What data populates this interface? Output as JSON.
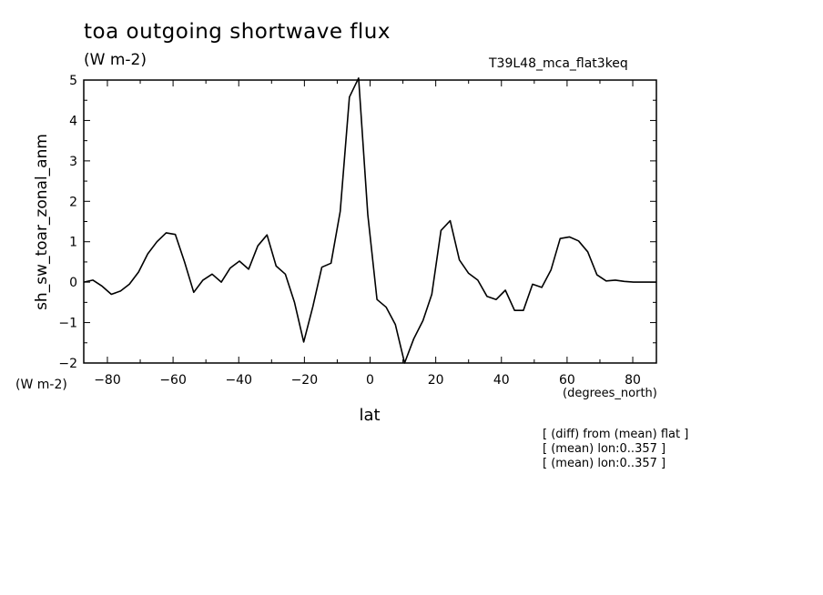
{
  "chart_data": {
    "type": "line",
    "title": "toa outgoing shortwave flux",
    "units": "(W m-2)",
    "run_id": "T39L48_mca_flat3keq",
    "ylabel": "sh_sw_toar_zonal_anm",
    "y_units_label": "(W m-2)",
    "xlabel": "lat",
    "x_units_label": "(degrees_north)",
    "xlim": [
      -87.2,
      87.2
    ],
    "ylim": [
      -2,
      5
    ],
    "xticks": [
      -80,
      -60,
      -40,
      -20,
      0,
      20,
      40,
      60,
      80
    ],
    "xtick_labels": [
      "−80",
      "−60",
      "−40",
      "−20",
      "0",
      "20",
      "40",
      "60",
      "80"
    ],
    "yticks": [
      -2,
      -1,
      0,
      1,
      2,
      3,
      4,
      5
    ],
    "ytick_labels": [
      "−2",
      "−1",
      "0",
      "1",
      "2",
      "3",
      "4",
      "5"
    ],
    "grid": false,
    "series": [
      {
        "x": [
          -87.2,
          -84.4,
          -81.6,
          -78.8,
          -76.0,
          -73.3,
          -70.5,
          -67.7,
          -64.9,
          -62.1,
          -59.3,
          -56.5,
          -53.7,
          -50.9,
          -48.1,
          -45.3,
          -42.6,
          -39.8,
          -37.0,
          -34.2,
          -31.4,
          -28.6,
          -25.8,
          -23.0,
          -20.2,
          -17.4,
          -14.7,
          -11.9,
          -9.1,
          -6.3,
          -3.5,
          -0.7,
          2.1,
          4.9,
          7.7,
          10.5,
          13.3,
          16.1,
          18.8,
          21.6,
          24.4,
          27.2,
          30.0,
          32.8,
          35.6,
          38.4,
          41.2,
          44.0,
          46.7,
          49.5,
          52.3,
          55.1,
          57.9,
          60.7,
          63.5,
          66.3,
          69.1,
          71.9,
          74.7,
          77.4,
          80.2,
          83.0,
          85.8,
          87.2
        ],
        "y": [
          0.0,
          0.05,
          -0.1,
          -0.3,
          -0.22,
          -0.05,
          0.25,
          0.7,
          1.0,
          1.22,
          1.18,
          0.5,
          -0.25,
          0.05,
          0.2,
          0.0,
          0.35,
          0.52,
          0.32,
          0.9,
          1.17,
          0.4,
          0.2,
          -0.5,
          -1.48,
          -0.6,
          0.37,
          0.47,
          1.75,
          4.58,
          5.05,
          1.67,
          -0.43,
          -0.62,
          -1.05,
          -2.0,
          -1.4,
          -0.95,
          -0.3,
          1.28,
          1.52,
          0.55,
          0.22,
          0.05,
          -0.35,
          -0.43,
          -0.2,
          -0.7,
          -0.7,
          -0.05,
          -0.13,
          0.3,
          1.08,
          1.12,
          1.02,
          0.75,
          0.18,
          0.03,
          0.05,
          0.02,
          0.0,
          0.0,
          0.0,
          0.0
        ]
      }
    ]
  },
  "notes": [
    "[ (diff) from (mean) flat ]",
    "[ (mean) lon:0..357 ]",
    "[ (mean) lon:0..357 ]"
  ]
}
